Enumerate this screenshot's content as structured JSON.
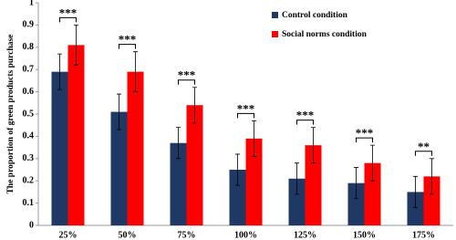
{
  "chart_data": {
    "type": "bar",
    "y_label": "The proportion of green products purchase",
    "categories": [
      "25%",
      "50%",
      "75%",
      "100%",
      "125%",
      "150%",
      "175%"
    ],
    "series": [
      {
        "name": "Control condition",
        "color": "#203864",
        "values": [
          0.69,
          0.51,
          0.37,
          0.25,
          0.21,
          0.19,
          0.15
        ],
        "errors": [
          0.08,
          0.08,
          0.07,
          0.07,
          0.07,
          0.07,
          0.07
        ]
      },
      {
        "name": "Social norms condition",
        "color": "#ff0000",
        "values": [
          0.81,
          0.69,
          0.54,
          0.39,
          0.36,
          0.28,
          0.22
        ],
        "errors": [
          0.09,
          0.09,
          0.08,
          0.08,
          0.08,
          0.08,
          0.08
        ]
      }
    ],
    "significance": [
      "***",
      "***",
      "***",
      "***",
      "***",
      "***",
      "**"
    ],
    "ylim": [
      0,
      1
    ],
    "yticks": [
      0,
      0.1,
      0.2,
      0.3,
      0.4,
      0.5,
      0.6,
      0.7,
      0.8,
      0.9,
      1
    ],
    "grid": false,
    "legend": "upper right"
  }
}
